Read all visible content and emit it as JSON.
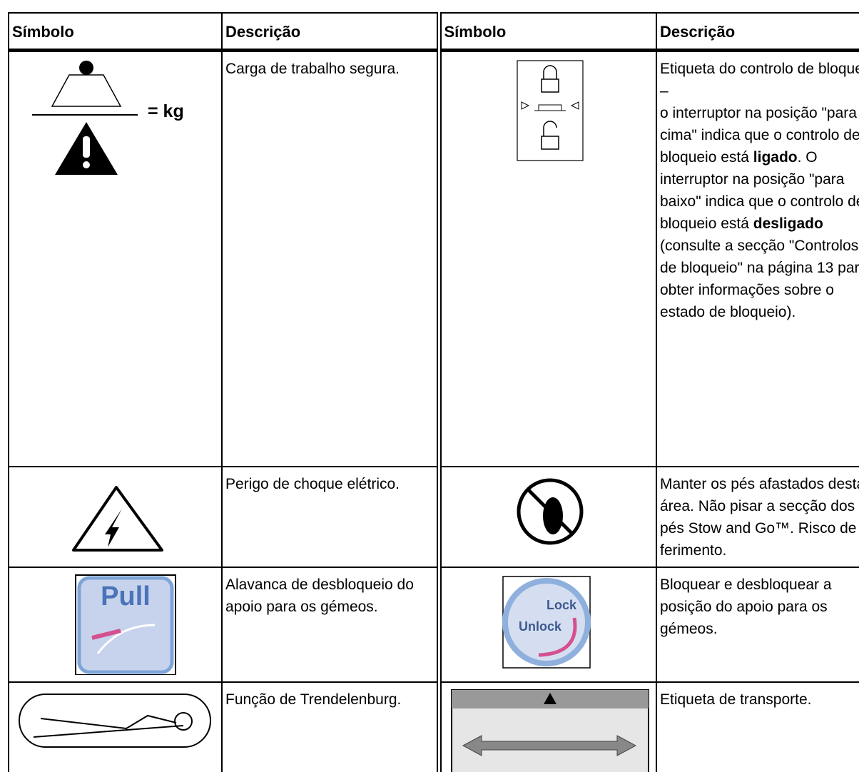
{
  "header": [
    "Símbolo",
    "Descrição",
    "Símbolo",
    "Descrição"
  ],
  "rows": [
    {
      "left": {
        "symbol_text": "= kg",
        "description": [
          "Carga de trabalho segura."
        ]
      },
      "right": {
        "description": [
          "Etiqueta do controlo de bloqueio –",
          "o interruptor na posição \"para cima\" indica que o controlo de bloqueio está ",
          "ligado",
          ". O interruptor na posição \"para baixo\" indica que o controlo de bloqueio está ",
          "desligado",
          " (consulte a secção \"Controlos de bloqueio\" na página  13 para obter informações sobre o estado de bloqueio)."
        ]
      }
    },
    {
      "left": {
        "description": [
          "Perigo de choque elétrico."
        ]
      },
      "right": {
        "description": [
          "Manter os pés afastados desta área. Não pisar a secção dos pés Stow and Go™. Risco de ferimento."
        ]
      }
    },
    {
      "left": {
        "symbol_text": "Pull",
        "description": [
          "Alavanca de desbloqueio do apoio para os gémeos."
        ]
      },
      "right": {
        "symbol_text": [
          "Lock",
          "Unlock"
        ],
        "description": [
          "Bloquear e desbloquear a posição do apoio para os gémeos."
        ]
      }
    },
    {
      "left": {
        "description": [
          "Função de Trendelenburg."
        ]
      },
      "right": {
        "description": [
          "Etiqueta de transporte."
        ]
      }
    }
  ]
}
